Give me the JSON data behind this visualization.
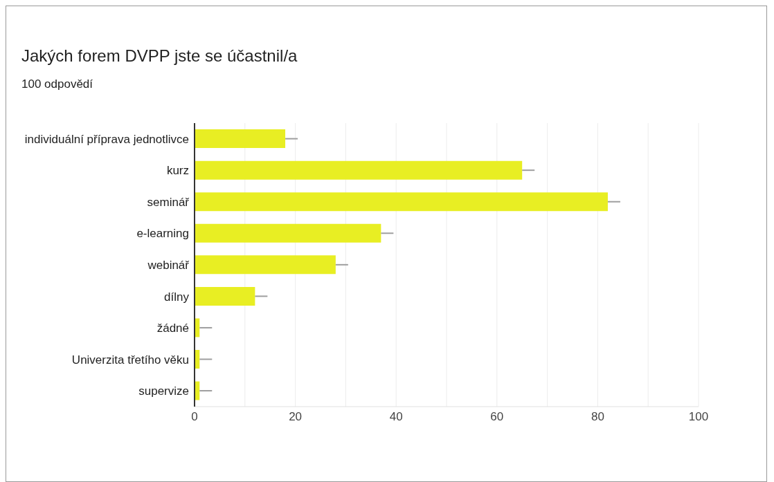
{
  "chart_data": {
    "type": "bar",
    "orientation": "horizontal",
    "title": "Jakých forem DVPP jste se účastnil/a",
    "subtitle": "100 odpovědí",
    "categories": [
      "individuální příprava jednotlivce",
      "kurz",
      "seminář",
      "e-learning",
      "webinář",
      "dílny",
      "žádné",
      "Univerzita třetího věku",
      "supervize"
    ],
    "values": [
      18,
      65,
      82,
      37,
      28,
      12,
      1,
      1,
      1
    ],
    "color": "#e8ee23",
    "xlim": [
      0,
      100
    ],
    "xticks": [
      0,
      {
        "value": 10,
        "label": null
      },
      20,
      {
        "value": 30,
        "label": null
      },
      40,
      {
        "value": 50,
        "label": null
      },
      60,
      {
        "value": 70,
        "label": null
      },
      80,
      {
        "value": 90,
        "label": null
      },
      100
    ],
    "grid": "x",
    "legend": false
  }
}
